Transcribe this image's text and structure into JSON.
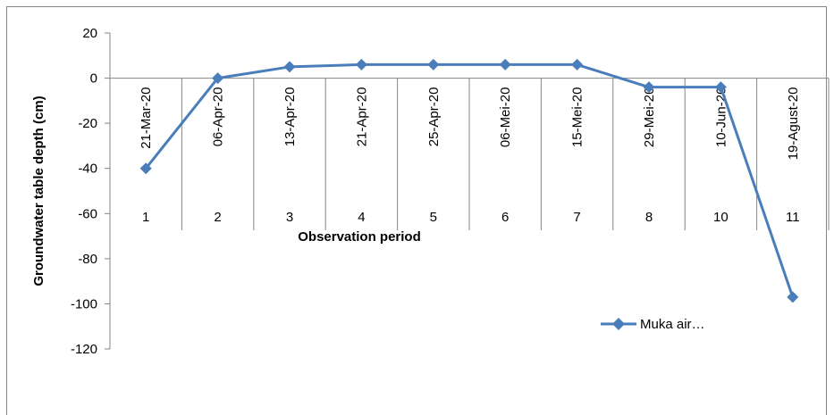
{
  "chart_data": {
    "type": "line",
    "title": "",
    "xlabel": "Observation period",
    "ylabel": "Groundwater table depth (cm)",
    "categories": [
      "1",
      "2",
      "3",
      "4",
      "5",
      "6",
      "7",
      "8",
      "10",
      "11"
    ],
    "date_labels": [
      "21-Mar-20",
      "06-Apr-20",
      "13-Apr-20",
      "21-Apr-20",
      "25-Apr-20",
      "06-Mei-20",
      "15-Mei-20",
      "29-Mei-20",
      "10-Jun-20",
      "19-Agust-20"
    ],
    "series": [
      {
        "name": "Muka air…",
        "values": [
          -40,
          0,
          5,
          6,
          6,
          6,
          6,
          -4,
          -4,
          -97
        ]
      }
    ],
    "ylim": [
      -120,
      20
    ],
    "yticks": [
      "20",
      "0",
      "-20",
      "-40",
      "-60",
      "-80",
      "-100",
      "-120"
    ],
    "grid": false,
    "legend_position": "right",
    "colors": {
      "series": "#4A7EBB",
      "marker": "#4A7EBB",
      "axis": "#868686",
      "border": "#868686"
    }
  }
}
